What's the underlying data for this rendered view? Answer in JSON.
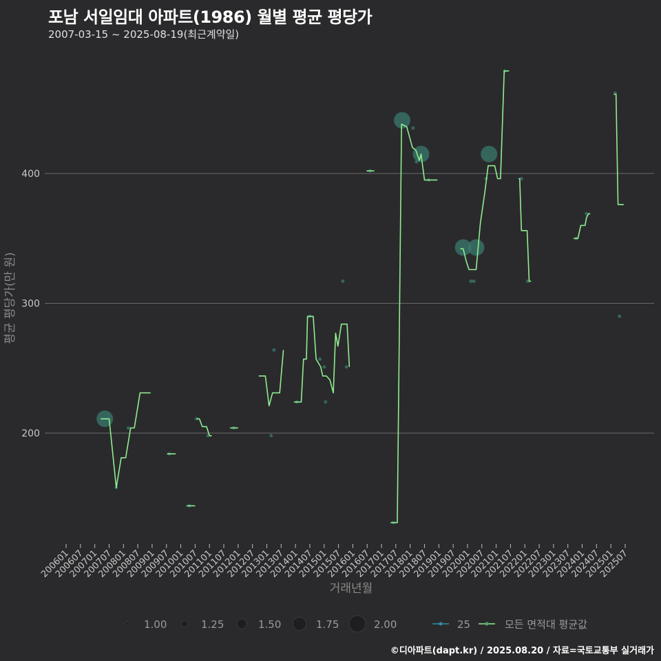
{
  "header": {
    "title": "포남 서일임대 아파트(1986) 월별 평균 평당가",
    "subtitle": "2007-03-15 ~ 2025-08-19(최근계약일)"
  },
  "footer": {
    "caption": "©디아파트(dapt.kr) / 2025.08.20 / 자료=국토교통부 실거래가"
  },
  "colors": {
    "background": "#2a2a2c",
    "line": "#90ee90",
    "point": "#3a7a6e",
    "grid": "#6a6a6a"
  },
  "chart_data": {
    "type": "line",
    "xlabel": "거래년월",
    "ylabel": "평균 평당가(만 원)",
    "ylim": [
      117,
      500
    ],
    "y_ticks": [
      200,
      300,
      400
    ],
    "x_ticks": [
      "200601",
      "200607",
      "200701",
      "200707",
      "200801",
      "200807",
      "200901",
      "200907",
      "201001",
      "201007",
      "201101",
      "201107",
      "201201",
      "201207",
      "201301",
      "201307",
      "201401",
      "201407",
      "201501",
      "201507",
      "201601",
      "201607",
      "201701",
      "201707",
      "201801",
      "201807",
      "201901",
      "201907",
      "202001",
      "202007",
      "202101",
      "202107",
      "202201",
      "202207",
      "202301",
      "202307",
      "202401",
      "202407",
      "202501",
      "202507"
    ],
    "size_legend": {
      "values": [
        "1.00",
        "1.25",
        "1.50",
        "1.75",
        "2.00"
      ]
    },
    "series_legend": [
      {
        "name": "25",
        "kind": "point"
      },
      {
        "name": "모든 면적대 평균값",
        "kind": "line"
      }
    ],
    "line_segments": [
      [
        [
          2007.21,
          211
        ],
        [
          2007.5,
          211
        ],
        [
          2007.75,
          158
        ],
        [
          2007.92,
          181
        ],
        [
          2008.08,
          181
        ],
        [
          2008.25,
          204
        ],
        [
          2008.38,
          204
        ],
        [
          2008.58,
          231
        ],
        [
          2008.95,
          231
        ]
      ],
      [
        [
          2009.52,
          184
        ],
        [
          2009.82,
          184
        ]
      ],
      [
        [
          2010.2,
          144
        ],
        [
          2010.5,
          144
        ]
      ],
      [
        [
          2010.55,
          211
        ],
        [
          2010.65,
          211
        ],
        [
          2010.75,
          205
        ],
        [
          2010.9,
          205
        ],
        [
          2011.0,
          198
        ],
        [
          2011.08,
          198
        ]
      ],
      [
        [
          2011.72,
          204
        ],
        [
          2012.0,
          204
        ]
      ],
      [
        [
          2012.72,
          244
        ],
        [
          2012.95,
          244
        ],
        [
          2013.08,
          221
        ],
        [
          2013.2,
          231
        ],
        [
          2013.45,
          231
        ],
        [
          2013.58,
          264
        ]
      ],
      [
        [
          2013.95,
          224
        ],
        [
          2014.2,
          224
        ],
        [
          2014.28,
          257
        ],
        [
          2014.38,
          257
        ],
        [
          2014.42,
          290
        ],
        [
          2014.62,
          290
        ],
        [
          2014.72,
          257
        ],
        [
          2014.88,
          251
        ],
        [
          2014.95,
          244
        ],
        [
          2015.08,
          244
        ],
        [
          2015.2,
          241
        ],
        [
          2015.32,
          231
        ],
        [
          2015.4,
          277
        ],
        [
          2015.48,
          267
        ],
        [
          2015.6,
          284
        ],
        [
          2015.8,
          284
        ],
        [
          2015.88,
          251
        ]
      ],
      [
        [
          2016.48,
          402
        ],
        [
          2016.75,
          402
        ]
      ],
      [
        [
          2017.32,
          131
        ],
        [
          2017.55,
          131
        ],
        [
          2017.7,
          438
        ],
        [
          2017.88,
          436
        ],
        [
          2018.08,
          420
        ],
        [
          2018.2,
          418
        ],
        [
          2018.32,
          410
        ],
        [
          2018.38,
          415
        ],
        [
          2018.5,
          395
        ],
        [
          2018.95,
          395
        ]
      ],
      [
        [
          2019.75,
          342
        ],
        [
          2019.85,
          342
        ],
        [
          2019.95,
          333
        ],
        [
          2020.05,
          326
        ],
        [
          2020.3,
          326
        ],
        [
          2020.45,
          362
        ],
        [
          2020.6,
          385
        ],
        [
          2020.72,
          406
        ],
        [
          2020.95,
          406
        ],
        [
          2021.05,
          396
        ],
        [
          2021.15,
          396
        ],
        [
          2021.28,
          479
        ],
        [
          2021.45,
          479
        ]
      ],
      [
        [
          2021.78,
          396
        ],
        [
          2021.82,
          396
        ],
        [
          2021.88,
          356
        ],
        [
          2022.08,
          356
        ],
        [
          2022.15,
          317
        ],
        [
          2022.22,
          317
        ]
      ],
      [
        [
          2023.7,
          350
        ],
        [
          2023.85,
          350
        ],
        [
          2023.95,
          360
        ],
        [
          2024.1,
          360
        ],
        [
          2024.15,
          366
        ],
        [
          2024.22,
          369
        ],
        [
          2024.28,
          369
        ]
      ],
      [
        [
          2025.1,
          461
        ],
        [
          2025.18,
          461
        ],
        [
          2025.25,
          376
        ],
        [
          2025.45,
          376
        ]
      ]
    ],
    "points": [
      {
        "x": 2007.35,
        "y": 211,
        "size": 2.0
      },
      {
        "x": 2007.75,
        "y": 158,
        "size": 1.0
      },
      {
        "x": 2008.17,
        "y": 204,
        "size": 1.0
      },
      {
        "x": 2009.6,
        "y": 184,
        "size": 1.0
      },
      {
        "x": 2010.3,
        "y": 144,
        "size": 1.0
      },
      {
        "x": 2010.55,
        "y": 211,
        "size": 1.0
      },
      {
        "x": 2010.95,
        "y": 198,
        "size": 1.0
      },
      {
        "x": 2011.85,
        "y": 204,
        "size": 1.0
      },
      {
        "x": 2013.15,
        "y": 198,
        "size": 1.0
      },
      {
        "x": 2013.25,
        "y": 264,
        "size": 1.0
      },
      {
        "x": 2014.05,
        "y": 224,
        "size": 1.0
      },
      {
        "x": 2014.5,
        "y": 290,
        "size": 1.0
      },
      {
        "x": 2014.85,
        "y": 257,
        "size": 1.0
      },
      {
        "x": 2015.0,
        "y": 251,
        "size": 1.0
      },
      {
        "x": 2015.05,
        "y": 224,
        "size": 1.0
      },
      {
        "x": 2015.65,
        "y": 317,
        "size": 1.0
      },
      {
        "x": 2015.78,
        "y": 251,
        "size": 1.0
      },
      {
        "x": 2016.6,
        "y": 402,
        "size": 1.0
      },
      {
        "x": 2017.42,
        "y": 131,
        "size": 1.0
      },
      {
        "x": 2017.72,
        "y": 441,
        "size": 2.0
      },
      {
        "x": 2018.1,
        "y": 435,
        "size": 1.0
      },
      {
        "x": 2018.22,
        "y": 409,
        "size": 1.0
      },
      {
        "x": 2018.38,
        "y": 415,
        "size": 2.0
      },
      {
        "x": 2018.65,
        "y": 395,
        "size": 1.0
      },
      {
        "x": 2019.85,
        "y": 343,
        "size": 2.0
      },
      {
        "x": 2020.12,
        "y": 317,
        "size": 1.0
      },
      {
        "x": 2020.22,
        "y": 317,
        "size": 1.0
      },
      {
        "x": 2020.3,
        "y": 343,
        "size": 2.0
      },
      {
        "x": 2020.65,
        "y": 396,
        "size": 1.0
      },
      {
        "x": 2020.75,
        "y": 415,
        "size": 2.0
      },
      {
        "x": 2021.3,
        "y": 479,
        "size": 1.0
      },
      {
        "x": 2021.88,
        "y": 396,
        "size": 1.0
      },
      {
        "x": 2022.1,
        "y": 317,
        "size": 1.0
      },
      {
        "x": 2023.8,
        "y": 350,
        "size": 1.0
      },
      {
        "x": 2024.15,
        "y": 369,
        "size": 1.0
      },
      {
        "x": 2025.15,
        "y": 462,
        "size": 1.0
      },
      {
        "x": 2025.3,
        "y": 290,
        "size": 1.0
      }
    ]
  }
}
